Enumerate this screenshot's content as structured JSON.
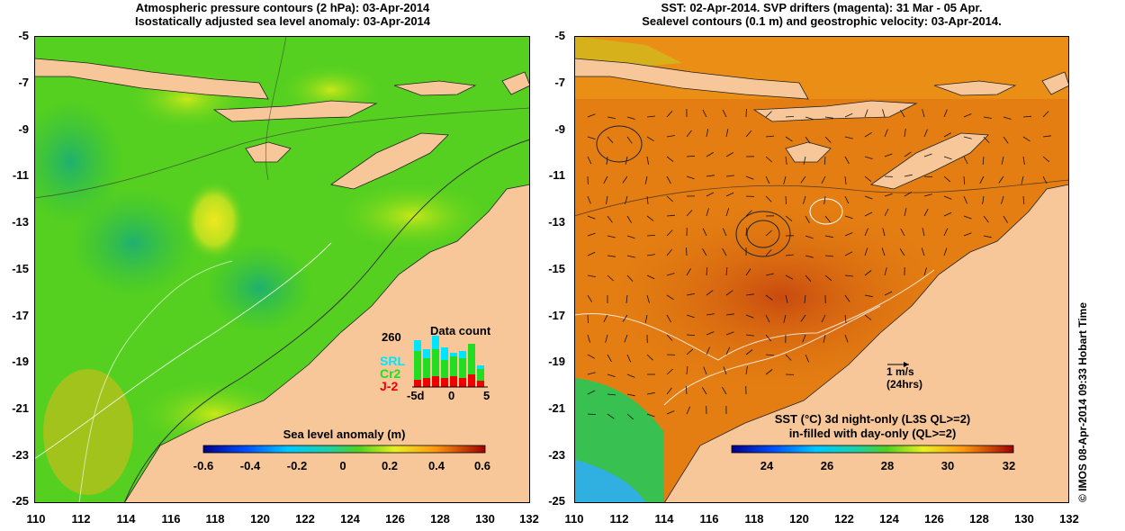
{
  "left": {
    "title_line1": "Atmospheric pressure contours (2 hPa): 03-Apr-2014",
    "title_line2": "Isostatically adjusted sea level anomaly: 03-Apr-2014",
    "colorbar_title": "Sea level anomaly (m)",
    "colorbar_ticks": [
      "-0.6",
      "-0.4",
      "-0.2",
      "0",
      "0.2",
      "0.4",
      "0.6"
    ],
    "inset": {
      "title": "Data count",
      "max_label": "260",
      "legend": [
        "SRL",
        "Cr2",
        "J-2"
      ],
      "legend_colors": [
        "#00e5ff",
        "#22dd22",
        "#ee0000"
      ],
      "x_ticks": [
        "-5d",
        "0",
        "5"
      ]
    }
  },
  "right": {
    "title_line1": "SST: 02-Apr-2014. SVP drifters (magenta): 31 Mar - 05 Apr.",
    "title_line2": "Sealevel contours (0.1 m) and geostrophic velocity: 03-Apr-2014.",
    "colorbar_title_line1": "SST (°C)  3d night-only (L3S QL>=2)",
    "colorbar_title_line2": "in-filled with day-only (QL>=2)",
    "colorbar_ticks": [
      "24",
      "26",
      "28",
      "30",
      "32"
    ],
    "velocity_scale_label": "1 m/s",
    "velocity_scale_sub": "(24hrs)"
  },
  "y_axis_labels": [
    "-5",
    "-7",
    "-9",
    "-11",
    "-13",
    "-15",
    "-17",
    "-19",
    "-21",
    "-23",
    "-25"
  ],
  "x_axis_labels": [
    "110",
    "112",
    "114",
    "116",
    "118",
    "120",
    "122",
    "124",
    "126",
    "128",
    "130",
    "132"
  ],
  "credit": "© IMOS 08-Apr-2014 09:33 Hobart Time",
  "colors": {
    "land": "#f7c79a",
    "ocean_green": "#55d020",
    "sst_orange": "#e07a10"
  }
}
